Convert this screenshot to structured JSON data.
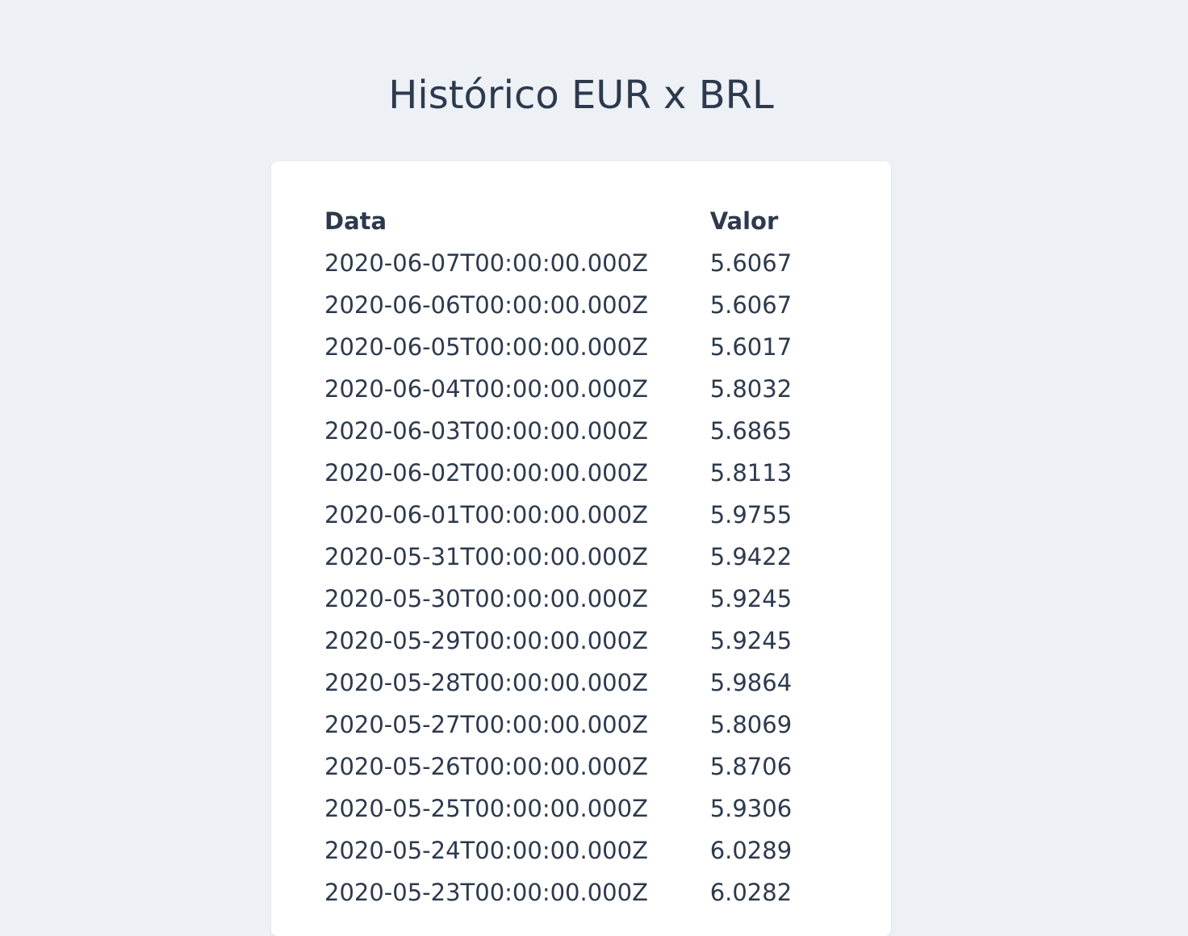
{
  "page": {
    "title": "Histórico EUR x BRL"
  },
  "table": {
    "headers": {
      "date": "Data",
      "value": "Valor"
    },
    "rows": [
      {
        "date": "2020-06-07T00:00:00.000Z",
        "value": "5.6067"
      },
      {
        "date": "2020-06-06T00:00:00.000Z",
        "value": "5.6067"
      },
      {
        "date": "2020-06-05T00:00:00.000Z",
        "value": "5.6017"
      },
      {
        "date": "2020-06-04T00:00:00.000Z",
        "value": "5.8032"
      },
      {
        "date": "2020-06-03T00:00:00.000Z",
        "value": "5.6865"
      },
      {
        "date": "2020-06-02T00:00:00.000Z",
        "value": "5.8113"
      },
      {
        "date": "2020-06-01T00:00:00.000Z",
        "value": "5.9755"
      },
      {
        "date": "2020-05-31T00:00:00.000Z",
        "value": "5.9422"
      },
      {
        "date": "2020-05-30T00:00:00.000Z",
        "value": "5.9245"
      },
      {
        "date": "2020-05-29T00:00:00.000Z",
        "value": "5.9245"
      },
      {
        "date": "2020-05-28T00:00:00.000Z",
        "value": "5.9864"
      },
      {
        "date": "2020-05-27T00:00:00.000Z",
        "value": "5.8069"
      },
      {
        "date": "2020-05-26T00:00:00.000Z",
        "value": "5.8706"
      },
      {
        "date": "2020-05-25T00:00:00.000Z",
        "value": "5.9306"
      },
      {
        "date": "2020-05-24T00:00:00.000Z",
        "value": "6.0289"
      },
      {
        "date": "2020-05-23T00:00:00.000Z",
        "value": "6.0282"
      }
    ]
  }
}
